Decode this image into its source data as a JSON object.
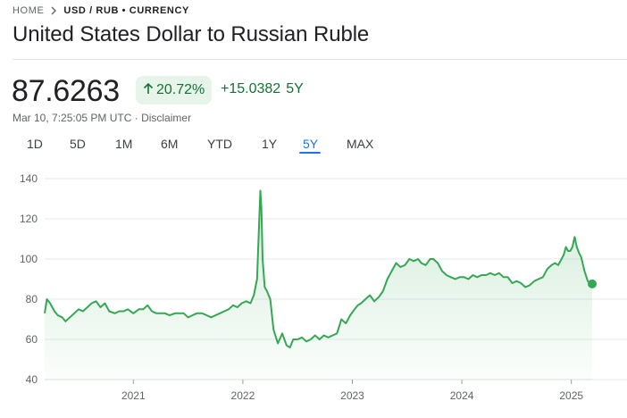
{
  "breadcrumb": {
    "home": "HOME",
    "current": "USD / RUB • CURRENCY"
  },
  "title": "United States Dollar to Russian Ruble",
  "quote": {
    "price": "87.6263",
    "percent_change": "20.72%",
    "absolute_change": "+15.0382",
    "period": "5Y",
    "timestamp": "Mar 10, 7:25:05 PM UTC",
    "separator": " · ",
    "disclaimer": "Disclaimer"
  },
  "tabs": [
    {
      "label": "1D"
    },
    {
      "label": "5D"
    },
    {
      "label": "1M"
    },
    {
      "label": "6M"
    },
    {
      "label": "YTD"
    },
    {
      "label": "1Y"
    },
    {
      "label": "5Y",
      "active": true
    },
    {
      "label": "MAX"
    }
  ],
  "colors": {
    "positive": "#137333",
    "positive_bg": "#e6f4ea",
    "line": "#34a853",
    "active_tab": "#1a73e8"
  },
  "icons": {
    "breadcrumb_separator": "chevron-right-icon",
    "change_direction": "arrow-up-icon"
  },
  "chart_data": {
    "type": "area",
    "ylim": [
      40,
      140
    ],
    "yticks": [
      40,
      60,
      80,
      100,
      120,
      140
    ],
    "xlim": [
      2020.19,
      2025.19
    ],
    "xticks": [
      {
        "value": 2021,
        "label": "2021"
      },
      {
        "value": 2022,
        "label": "2022"
      },
      {
        "value": 2023,
        "label": "2023"
      },
      {
        "value": 2024,
        "label": "2024"
      },
      {
        "value": 2025,
        "label": "2025"
      }
    ],
    "grid": "horizontal",
    "series": [
      {
        "x": [
          2020.19,
          2020.21,
          2020.24,
          2020.28,
          2020.31,
          2020.35,
          2020.38,
          2020.42,
          2020.46,
          2020.5,
          2020.54,
          2020.58,
          2020.62,
          2020.66,
          2020.7,
          2020.74,
          2020.78,
          2020.83,
          2020.87,
          2020.91,
          2020.95,
          2021.0,
          2021.05,
          2021.09,
          2021.13,
          2021.17,
          2021.21,
          2021.25,
          2021.29,
          2021.33,
          2021.38,
          2021.42,
          2021.46,
          2021.5,
          2021.54,
          2021.58,
          2021.63,
          2021.67,
          2021.71,
          2021.75,
          2021.79,
          2021.83,
          2021.87,
          2021.91,
          2021.95,
          2021.99,
          2022.03,
          2022.07,
          2022.1,
          2022.13,
          2022.15,
          2022.16,
          2022.17,
          2022.18,
          2022.2,
          2022.22,
          2022.25,
          2022.28,
          2022.32,
          2022.36,
          2022.4,
          2022.43,
          2022.46,
          2022.5,
          2022.54,
          2022.58,
          2022.62,
          2022.66,
          2022.7,
          2022.74,
          2022.78,
          2022.82,
          2022.86,
          2022.9,
          2022.94,
          2022.98,
          2023.02,
          2023.05,
          2023.08,
          2023.12,
          2023.16,
          2023.2,
          2023.24,
          2023.28,
          2023.32,
          2023.36,
          2023.4,
          2023.44,
          2023.48,
          2023.52,
          2023.56,
          2023.6,
          2023.63,
          2023.67,
          2023.71,
          2023.74,
          2023.78,
          2023.82,
          2023.86,
          2023.9,
          2023.94,
          2023.98,
          2024.02,
          2024.06,
          2024.1,
          2024.14,
          2024.18,
          2024.22,
          2024.26,
          2024.3,
          2024.34,
          2024.38,
          2024.42,
          2024.46,
          2024.5,
          2024.54,
          2024.58,
          2024.62,
          2024.66,
          2024.7,
          2024.74,
          2024.78,
          2024.82,
          2024.85,
          2024.88,
          2024.91,
          2024.93,
          2024.95,
          2024.97,
          2024.99,
          2025.01,
          2025.03,
          2025.05,
          2025.07,
          2025.09,
          2025.12,
          2025.15,
          2025.19
        ],
        "y": [
          73,
          80,
          78,
          74,
          72,
          71,
          69,
          71,
          73,
          75,
          74,
          76,
          78,
          79,
          76,
          78,
          74,
          73,
          74,
          74,
          75,
          73,
          75,
          75,
          77,
          74,
          73,
          73,
          73,
          72,
          73,
          73,
          73,
          71,
          72,
          73,
          73,
          72,
          71,
          72,
          73,
          74,
          75,
          77,
          76,
          78,
          79,
          78,
          82,
          90,
          120,
          134,
          125,
          100,
          86,
          84,
          80,
          65,
          58,
          63,
          57,
          56,
          60,
          60,
          61,
          59,
          60,
          62,
          60,
          62,
          61,
          62,
          63,
          70,
          68,
          72,
          75,
          77,
          78,
          80,
          82,
          79,
          81,
          84,
          90,
          94,
          98,
          96,
          97,
          100,
          99,
          100,
          98,
          97,
          100,
          100,
          98,
          94,
          92,
          91,
          90,
          91,
          91,
          90,
          92,
          91,
          92,
          92,
          93,
          92,
          93,
          91,
          91,
          88,
          89,
          88,
          86,
          87,
          89,
          90,
          91,
          95,
          97,
          98,
          97,
          100,
          102,
          106,
          104,
          104,
          106,
          111,
          106,
          103,
          101,
          94,
          89,
          87.6
        ]
      }
    ]
  }
}
